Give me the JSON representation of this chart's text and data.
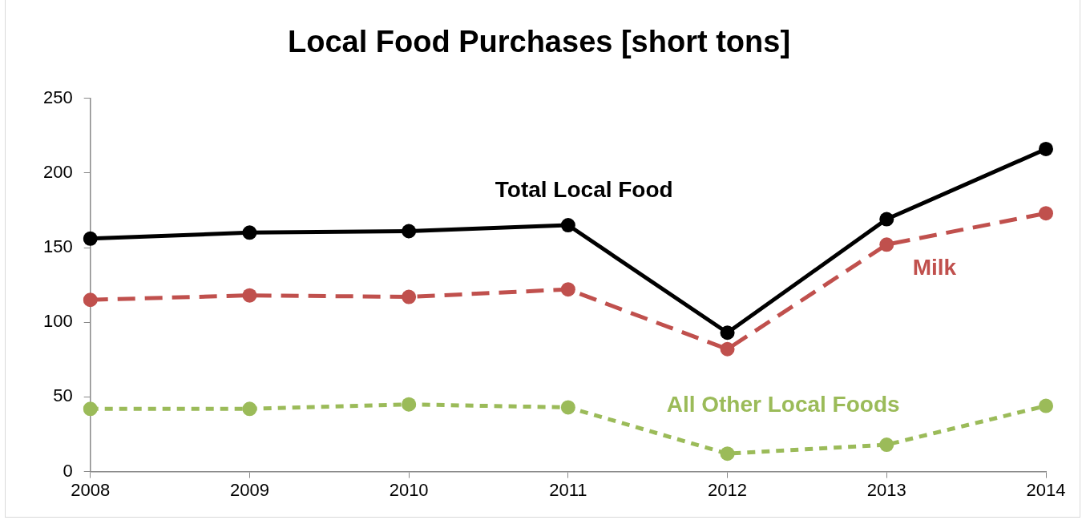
{
  "chart_data": {
    "type": "line",
    "title": "Local Food Purchases [short tons]",
    "categories": [
      "2008",
      "2009",
      "2010",
      "2011",
      "2012",
      "2013",
      "2014"
    ],
    "series": [
      {
        "name": "Total Local Food",
        "color": "#000000",
        "line_style": "solid",
        "values": [
          156,
          160,
          161,
          165,
          93,
          169,
          216
        ]
      },
      {
        "name": "Milk",
        "color": "#c0504d",
        "line_style": "dashed",
        "values": [
          115,
          118,
          117,
          122,
          82,
          152,
          173
        ]
      },
      {
        "name": "All Other Local Foods",
        "color": "#9bbb59",
        "line_style": "dotted",
        "values": [
          42,
          42,
          45,
          43,
          12,
          18,
          44
        ]
      }
    ],
    "ylim": [
      0,
      250
    ],
    "yticks": [
      0,
      50,
      100,
      150,
      200,
      250
    ],
    "grid": false,
    "legend": false,
    "marker": "circle"
  }
}
